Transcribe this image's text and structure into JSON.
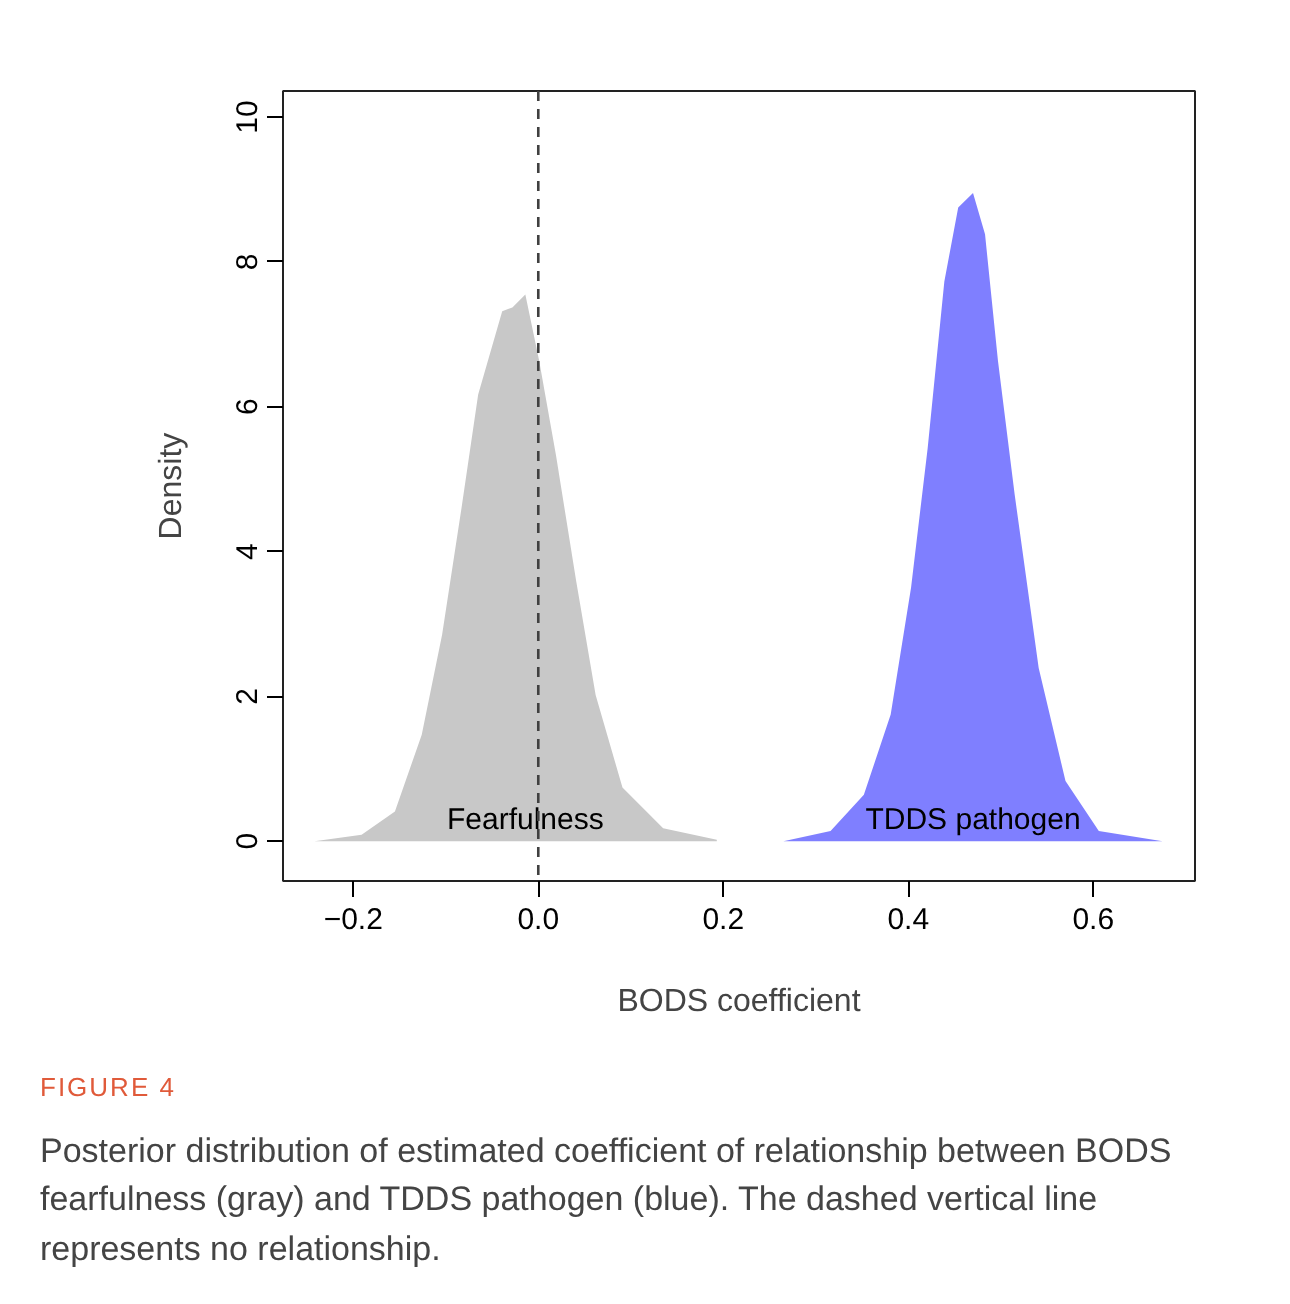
{
  "chart_data": {
    "type": "area",
    "xlabel": "BODS coefficient",
    "ylabel": "Density",
    "xlim": [
      -0.276,
      0.71
    ],
    "ylim": [
      -0.55,
      10.36
    ],
    "xticks": [
      {
        "value": -0.2,
        "label": "−0.2"
      },
      {
        "value": 0,
        "label": "0.0"
      },
      {
        "value": 0.2,
        "label": "0.2"
      },
      {
        "value": 0.4,
        "label": "0.4"
      },
      {
        "value": 0.6,
        "label": "0.6"
      }
    ],
    "yticks": [
      0,
      2,
      4,
      6,
      8,
      10
    ],
    "grid": false,
    "series": [
      {
        "name": "Fearfulness",
        "color": "#c8c8c8",
        "x": [
          -0.242,
          -0.191,
          -0.155,
          -0.126,
          -0.104,
          -0.083,
          -0.065,
          -0.039,
          -0.028,
          -0.014,
          0.001,
          0.019,
          0.041,
          0.062,
          0.091,
          0.135,
          0.193
        ],
        "values": [
          0,
          0.09,
          0.41,
          1.47,
          2.85,
          4.6,
          6.17,
          7.32,
          7.37,
          7.55,
          6.63,
          5.34,
          3.59,
          2.02,
          0.74,
          0.18,
          0.02
        ]
      },
      {
        "name": "TDDS pathogen",
        "color": "#7f7fff",
        "x": [
          0.265,
          0.316,
          0.352,
          0.381,
          0.403,
          0.421,
          0.439,
          0.454,
          0.47,
          0.483,
          0.497,
          0.515,
          0.541,
          0.57,
          0.606,
          0.675
        ],
        "values": [
          0,
          0.14,
          0.64,
          1.75,
          3.5,
          5.43,
          7.73,
          8.75,
          8.95,
          8.38,
          6.63,
          4.79,
          2.39,
          0.83,
          0.14,
          0
        ]
      }
    ],
    "ref_lines": [
      {
        "axis": "x",
        "value": 0,
        "color": "#404040",
        "line_style": "dashed"
      }
    ],
    "annotations": [
      "FIGURE 4",
      "Posterior distribution of estimated coefficient of relationship between BODS fearfulness (gray) and TDDS pathogen (blue). The dashed vertical line represents no relationship."
    ]
  }
}
